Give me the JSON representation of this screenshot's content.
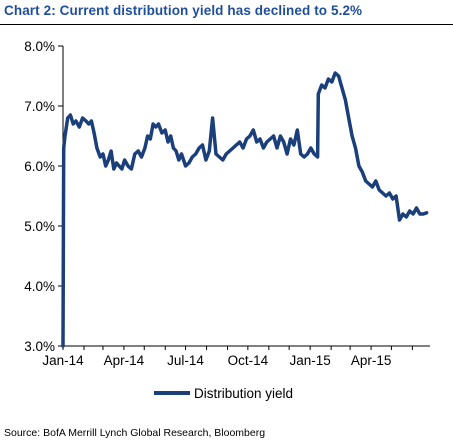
{
  "title": "Chart 2: Current distribution yield has declined to 5.2%",
  "source": "Source: BofA Merrill Lynch Global Research, Bloomberg",
  "colors": {
    "title": "#1f4e9c",
    "line": "#1a3f7a"
  },
  "chart_data": {
    "type": "line",
    "title": "Chart 2: Current distribution yield has declined to 5.2%",
    "xlabel": "",
    "ylabel": "",
    "x_ticks": [
      "Jan-14",
      "Apr-14",
      "Jul-14",
      "Oct-14",
      "Jan-15",
      "Apr-15"
    ],
    "y_ticks": [
      "8.0%",
      "7.0%",
      "6.0%",
      "5.0%",
      "4.0%",
      "3.0%"
    ],
    "ylim": [
      3.0,
      8.0
    ],
    "grid": false,
    "legend_position": "bottom",
    "series": [
      {
        "name": "Distribution yield",
        "x": [
          "2014-01-01",
          "2014-01-02",
          "2014-01-04",
          "2014-01-08",
          "2014-01-12",
          "2014-01-16",
          "2014-01-20",
          "2014-01-25",
          "2014-01-30",
          "2014-02-04",
          "2014-02-08",
          "2014-02-12",
          "2014-02-16",
          "2014-02-20",
          "2014-02-25",
          "2014-03-01",
          "2014-03-05",
          "2014-03-09",
          "2014-03-13",
          "2014-03-17",
          "2014-03-21",
          "2014-03-25",
          "2014-03-29",
          "2014-04-02",
          "2014-04-07",
          "2014-04-12",
          "2014-04-17",
          "2014-04-22",
          "2014-04-27",
          "2014-05-02",
          "2014-05-06",
          "2014-05-10",
          "2014-05-14",
          "2014-05-18",
          "2014-05-22",
          "2014-05-27",
          "2014-06-01",
          "2014-06-05",
          "2014-06-09",
          "2014-06-13",
          "2014-06-17",
          "2014-06-21",
          "2014-06-25",
          "2014-07-01",
          "2014-07-06",
          "2014-07-11",
          "2014-07-16",
          "2014-07-21",
          "2014-07-26",
          "2014-07-31",
          "2014-08-05",
          "2014-08-10",
          "2014-08-15",
          "2014-08-20",
          "2014-08-25",
          "2014-08-30",
          "2014-09-04",
          "2014-09-09",
          "2014-09-14",
          "2014-09-19",
          "2014-09-24",
          "2014-09-29",
          "2014-10-04",
          "2014-10-09",
          "2014-10-14",
          "2014-10-19",
          "2014-10-24",
          "2014-10-29",
          "2014-11-03",
          "2014-11-08",
          "2014-11-13",
          "2014-11-18",
          "2014-11-23",
          "2014-11-28",
          "2014-12-03",
          "2014-12-08",
          "2014-12-13",
          "2014-12-18",
          "2014-12-23",
          "2014-12-28",
          "2015-01-02",
          "2015-01-07",
          "2015-01-12",
          "2015-01-13",
          "2015-01-18",
          "2015-01-23",
          "2015-01-28",
          "2015-02-02",
          "2015-02-07",
          "2015-02-12",
          "2015-02-17",
          "2015-02-22",
          "2015-02-27",
          "2015-03-04",
          "2015-03-09",
          "2015-03-14",
          "2015-03-19",
          "2015-03-24",
          "2015-03-29",
          "2015-04-03",
          "2015-04-08",
          "2015-04-13",
          "2015-04-18",
          "2015-04-23",
          "2015-04-28",
          "2015-05-03",
          "2015-05-08",
          "2015-05-13",
          "2015-05-18",
          "2015-05-23",
          "2015-05-28",
          "2015-06-02",
          "2015-06-07",
          "2015-06-12",
          "2015-06-17",
          "2015-06-22"
        ],
        "values": [
          3.0,
          6.3,
          6.5,
          6.8,
          6.85,
          6.7,
          6.75,
          6.65,
          6.8,
          6.75,
          6.7,
          6.75,
          6.55,
          6.3,
          6.15,
          6.2,
          6.0,
          6.1,
          6.25,
          5.95,
          6.05,
          6.0,
          5.95,
          6.1,
          6.0,
          5.95,
          6.2,
          6.25,
          6.15,
          6.3,
          6.5,
          6.45,
          6.7,
          6.65,
          6.7,
          6.55,
          6.6,
          6.4,
          6.5,
          6.3,
          6.25,
          6.1,
          6.2,
          6.0,
          6.05,
          6.15,
          6.2,
          6.3,
          6.35,
          6.1,
          6.25,
          6.8,
          6.2,
          6.15,
          6.1,
          6.2,
          6.25,
          6.3,
          6.35,
          6.4,
          6.3,
          6.45,
          6.5,
          6.6,
          6.4,
          6.45,
          6.3,
          6.4,
          6.45,
          6.5,
          6.3,
          6.5,
          6.4,
          6.2,
          6.45,
          6.35,
          6.6,
          6.2,
          6.15,
          6.2,
          6.3,
          6.2,
          6.15,
          7.2,
          7.35,
          7.3,
          7.45,
          7.4,
          7.55,
          7.5,
          7.3,
          7.1,
          6.8,
          6.5,
          6.3,
          6.0,
          5.9,
          5.75,
          5.7,
          5.65,
          5.75,
          5.6,
          5.55,
          5.5,
          5.55,
          5.45,
          5.5,
          5.1,
          5.2,
          5.15,
          5.25,
          5.2,
          5.3,
          5.2,
          5.2,
          5.22
        ]
      }
    ]
  }
}
